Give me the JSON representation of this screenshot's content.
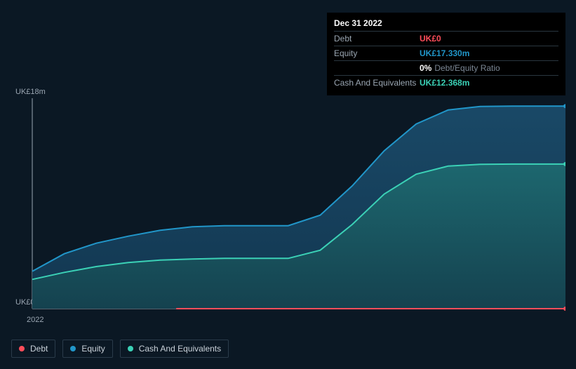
{
  "chart": {
    "type": "area",
    "background_color": "#0b1824",
    "axis_color": "#9aa6b2",
    "label_fontsize": 11,
    "ylabel_max": "UK£18m",
    "ylabel_min": "UK£0",
    "x_tick_label": "2022",
    "ylim": [
      0,
      18
    ],
    "x_points": [
      0.0,
      0.06,
      0.12,
      0.18,
      0.24,
      0.3,
      0.36,
      0.42,
      0.48,
      0.54,
      0.6,
      0.66,
      0.72,
      0.78,
      0.84,
      0.9,
      0.96,
      1.0
    ],
    "series": {
      "equity": {
        "label": "Equity",
        "stroke": "#2196c9",
        "stroke_width": 2,
        "fill_top": "#1b4e6e",
        "fill_bottom": "#133a55",
        "fill_opacity": 0.9,
        "values": [
          3.2,
          4.7,
          5.6,
          6.2,
          6.7,
          7.0,
          7.1,
          7.1,
          7.1,
          8.0,
          10.5,
          13.5,
          15.8,
          17.0,
          17.3,
          17.33,
          17.33,
          17.33
        ]
      },
      "cash": {
        "label": "Cash And Equivalents",
        "stroke": "#3bd1b6",
        "stroke_width": 2,
        "fill_top": "#1e6d71",
        "fill_bottom": "#15444f",
        "fill_opacity": 0.85,
        "values": [
          2.5,
          3.1,
          3.6,
          3.95,
          4.15,
          4.25,
          4.3,
          4.3,
          4.3,
          5.0,
          7.2,
          9.8,
          11.5,
          12.2,
          12.35,
          12.368,
          12.368,
          12.368
        ]
      },
      "debt": {
        "label": "Debt",
        "stroke": "#ff4d5a",
        "stroke_width": 2,
        "fill": "none",
        "x_start": 0.27,
        "values_const": 0
      }
    },
    "end_markers": {
      "radius": 3
    }
  },
  "tooltip": {
    "title": "Dec 31 2022",
    "rows": {
      "debt": {
        "label": "Debt",
        "value": "UK£0"
      },
      "equity": {
        "label": "Equity",
        "value": "UK£17.330m"
      },
      "ratio": {
        "pct": "0%",
        "label": "Debt/Equity Ratio"
      },
      "cash": {
        "label": "Cash And Equivalents",
        "value": "UK£12.368m"
      }
    }
  },
  "legend": {
    "items": [
      {
        "label": "Debt",
        "color": "#ff4d5a"
      },
      {
        "label": "Equity",
        "color": "#2196c9"
      },
      {
        "label": "Cash And Equivalents",
        "color": "#3bd1b6"
      }
    ]
  }
}
